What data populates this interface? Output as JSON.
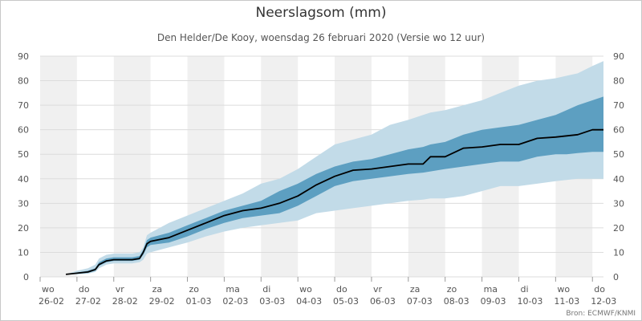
{
  "title": "Neerslagsom (mm)",
  "subtitle": "Den Helder/De Kooy, woensdag 26 februari 2020 (Versie wo 12 uur)",
  "credit": "Bron: ECMWF/KNMI",
  "chart_data": {
    "type": "area",
    "title": "Neerslagsom (mm)",
    "subtitle": "Den Helder/De Kooy, woensdag 26 februari 2020 (Versie wo 12 uur)",
    "ylim": [
      0,
      90
    ],
    "yticks": [
      0,
      10,
      20,
      30,
      40,
      50,
      60,
      70,
      80,
      90
    ],
    "xlim": [
      0,
      15.3
    ],
    "x_ticks": [
      {
        "day": "wo",
        "date": "26-02"
      },
      {
        "day": "do",
        "date": "27-02"
      },
      {
        "day": "vr",
        "date": "28-02"
      },
      {
        "day": "za",
        "date": "29-02"
      },
      {
        "day": "zo",
        "date": "01-03"
      },
      {
        "day": "ma",
        "date": "02-03"
      },
      {
        "day": "di",
        "date": "03-03"
      },
      {
        "day": "wo",
        "date": "04-03"
      },
      {
        "day": "do",
        "date": "05-03"
      },
      {
        "day": "vr",
        "date": "06-03"
      },
      {
        "day": "za",
        "date": "07-03"
      },
      {
        "day": "zo",
        "date": "08-03"
      },
      {
        "day": "ma",
        "date": "09-03"
      },
      {
        "day": "di",
        "date": "10-03"
      },
      {
        "day": "wo",
        "date": "11-03"
      },
      {
        "day": "do",
        "date": "12-03"
      }
    ],
    "grid": true,
    "colors": {
      "outer_band": "#c2dbe8",
      "inner_band": "#5d9fc1",
      "median": "#000000",
      "stripe": "#f0f0f0"
    },
    "x": [
      0.7,
      1.0,
      1.3,
      1.5,
      1.6,
      1.8,
      2.0,
      2.5,
      2.7,
      2.8,
      2.9,
      3.0,
      3.5,
      4.0,
      4.5,
      5.0,
      5.5,
      6.0,
      6.5,
      7.0,
      7.5,
      8.0,
      8.5,
      9.0,
      9.5,
      10.0,
      10.4,
      10.6,
      11.0,
      11.5,
      12.0,
      12.5,
      13.0,
      13.5,
      14.0,
      14.3,
      14.6,
      15.0,
      15.3
    ],
    "median": [
      1,
      1.5,
      2,
      3,
      5,
      6.5,
      7,
      7,
      7.5,
      10,
      13.5,
      14.5,
      16,
      19,
      22,
      25,
      27,
      28,
      30,
      33,
      37.5,
      41,
      43.5,
      44,
      45,
      46,
      46,
      49,
      49,
      52.5,
      53,
      54,
      54,
      56.5,
      57,
      57.5,
      58,
      60,
      60
    ],
    "inner_low": [
      1,
      1.2,
      1.6,
      2.5,
      4.5,
      6,
      6.5,
      6.5,
      7,
      9,
      12,
      13,
      14,
      16.5,
      19.5,
      22,
      24,
      25,
      26,
      29,
      33,
      37,
      39,
      40,
      41,
      42,
      42.5,
      43,
      44,
      45,
      46,
      47,
      47,
      49,
      50,
      50,
      50.5,
      51,
      51
    ],
    "inner_high": [
      1,
      1.8,
      2.5,
      3.5,
      6,
      7.5,
      8,
      8,
      8.5,
      11,
      15,
      16,
      18,
      21,
      24,
      27,
      29,
      31,
      35,
      38,
      42,
      45,
      47,
      48,
      50,
      52,
      53,
      54,
      55,
      58,
      60,
      61,
      62,
      64,
      66,
      68,
      70,
      72,
      73.5
    ],
    "outer_low": [
      1,
      1,
      1.3,
      2,
      3.5,
      5,
      5.5,
      5.5,
      6,
      7,
      9.5,
      10,
      12,
      14,
      16.5,
      18.5,
      20,
      21,
      22,
      23,
      26,
      27,
      28,
      29,
      30,
      31,
      31.5,
      32,
      32,
      33,
      35,
      37,
      37,
      38,
      39,
      39.5,
      40,
      40,
      40
    ],
    "outer_high": [
      1,
      2.5,
      3.5,
      5,
      7.5,
      9,
      9.5,
      9.5,
      10,
      12,
      17,
      18,
      22,
      25,
      28,
      31,
      34,
      38,
      40,
      44,
      49,
      54,
      56,
      58,
      62,
      64,
      66,
      67,
      68,
      70,
      72,
      75,
      78,
      80,
      81,
      82,
      83,
      86,
      88
    ]
  }
}
